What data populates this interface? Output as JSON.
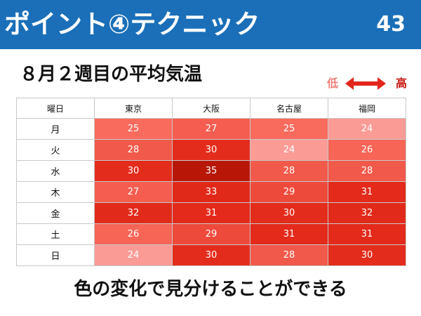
{
  "header": {
    "title": "ポイント④テクニック",
    "page_number": "43"
  },
  "subtitle": "８月２週目の平均気温",
  "legend": {
    "low_label": "低",
    "high_label": "高",
    "low_color": "#f0807a",
    "high_color": "#c6160c",
    "arrow_icon": "double-arrow-icon"
  },
  "table": {
    "corner_label": "曜日",
    "cities": [
      "東京",
      "大阪",
      "名古屋",
      "福岡"
    ],
    "rows": [
      {
        "day": "月",
        "values": [
          "25",
          "27",
          "25",
          "24"
        ]
      },
      {
        "day": "火",
        "values": [
          "28",
          "30",
          "24",
          "26"
        ]
      },
      {
        "day": "水",
        "values": [
          "30",
          "35",
          "28",
          "28"
        ]
      },
      {
        "day": "木",
        "values": [
          "27",
          "33",
          "29",
          "31"
        ]
      },
      {
        "day": "金",
        "values": [
          "32",
          "31",
          "30",
          "32"
        ]
      },
      {
        "day": "土",
        "values": [
          "26",
          "29",
          "31",
          "31"
        ]
      },
      {
        "day": "日",
        "values": [
          "24",
          "30",
          "28",
          "30"
        ]
      }
    ],
    "color_scale": {
      "24": "#fa9b96",
      "25": "#f86b5d",
      "26": "#f66556",
      "27": "#f45d4f",
      "28": "#f1594b",
      "29": "#ee4a3c",
      "30": "#e42c1c",
      "31": "#e32a1b",
      "32": "#e22a1a",
      "33": "#e1291a",
      "35": "#b81708"
    }
  },
  "footer": "色の変化で見分けることができる"
}
